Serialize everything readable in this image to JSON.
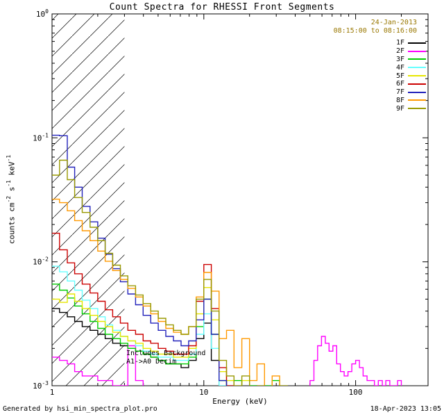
{
  "title": "Count Spectra for RHESSI Front Segments",
  "header": {
    "date": "24-Jan-2013",
    "time_range": "08:15:00 to 08:16:00",
    "text_color": "#997700"
  },
  "plot_annotations": {
    "line1": "Includes Background",
    "line2": "A1->A0 Decim"
  },
  "footer": {
    "left": "Generated by hsi_min_spectra_plot.pro",
    "right": "18-Apr-2023 13:05"
  },
  "chart_data": {
    "type": "line",
    "step": true,
    "title": "Count Spectra for RHESSI Front Segments",
    "xlabel": "Energy (keV)",
    "ylabel": "counts cm^-2 s^-1 keV^-1",
    "ylabel_parts": [
      [
        "counts cm",
        "-2"
      ],
      [
        " s",
        "-1"
      ],
      [
        " keV",
        "-1"
      ]
    ],
    "xscale": "log",
    "yscale": "log",
    "xlim": [
      1,
      300
    ],
    "ylim": [
      0.001,
      1
    ],
    "xticks": [
      1,
      10,
      100
    ],
    "ytick_exponents": [
      0,
      -1,
      -2,
      -3
    ],
    "grid": false,
    "legend_position": "top-right",
    "hatch_region": {
      "xmin": 1,
      "xmax": 3
    },
    "series": [
      {
        "name": "1F",
        "color": "#000000",
        "points": [
          [
            1.0,
            0.0042
          ],
          [
            1.12,
            0.0039
          ],
          [
            1.26,
            0.0036
          ],
          [
            1.41,
            0.0033
          ],
          [
            1.58,
            0.003
          ],
          [
            1.78,
            0.0028
          ],
          [
            2.0,
            0.0026
          ],
          [
            2.24,
            0.0024
          ],
          [
            2.51,
            0.0022
          ],
          [
            2.82,
            0.0021
          ],
          [
            3.16,
            0.002
          ],
          [
            3.55,
            0.0019
          ],
          [
            3.98,
            0.0018
          ],
          [
            4.47,
            0.0017
          ],
          [
            5.01,
            0.0016
          ],
          [
            5.62,
            0.0015
          ],
          [
            6.31,
            0.0015
          ],
          [
            7.08,
            0.0014
          ],
          [
            7.94,
            0.0016
          ],
          [
            8.91,
            0.0024
          ],
          [
            10.0,
            0.0032
          ],
          [
            11.2,
            0.0016
          ],
          [
            12.6,
            0.0008
          ],
          [
            14.1,
            0.0006
          ]
        ]
      },
      {
        "name": "2F",
        "color": "#ff00ff",
        "points": [
          [
            1.0,
            0.0017
          ],
          [
            1.12,
            0.0016
          ],
          [
            1.26,
            0.0015
          ],
          [
            1.41,
            0.0013
          ],
          [
            1.58,
            0.0012
          ],
          [
            1.78,
            0.0012
          ],
          [
            2.0,
            0.0011
          ],
          [
            2.24,
            0.0011
          ],
          [
            2.51,
            0.001
          ],
          [
            2.82,
            0.001
          ],
          [
            3.16,
            0.0021
          ],
          [
            3.55,
            0.0011
          ],
          [
            3.98,
            0.0008
          ],
          [
            4.47,
            0.0006
          ],
          [
            5.01,
            0.0005
          ],
          [
            44.7,
            0.0007
          ],
          [
            50.1,
            0.0011
          ],
          [
            53.1,
            0.0016
          ],
          [
            56.2,
            0.0021
          ],
          [
            59.6,
            0.0025
          ],
          [
            63.1,
            0.0022
          ],
          [
            66.8,
            0.0019
          ],
          [
            70.8,
            0.0021
          ],
          [
            75.0,
            0.0015
          ],
          [
            79.4,
            0.0013
          ],
          [
            84.1,
            0.0012
          ],
          [
            89.1,
            0.0013
          ],
          [
            94.4,
            0.0015
          ],
          [
            100,
            0.0016
          ],
          [
            106,
            0.0014
          ],
          [
            112,
            0.0012
          ],
          [
            119,
            0.0011
          ],
          [
            126,
            0.0011
          ],
          [
            133,
            0.001
          ],
          [
            141,
            0.0011
          ],
          [
            150,
            0.001
          ],
          [
            158,
            0.0011
          ],
          [
            168,
            0.001
          ],
          [
            178,
            0.001
          ],
          [
            189,
            0.0011
          ],
          [
            200,
            0.0009
          ],
          [
            212,
            0.0008
          ]
        ]
      },
      {
        "name": "3F",
        "color": "#00cc00",
        "points": [
          [
            1.0,
            0.0066
          ],
          [
            1.12,
            0.0059
          ],
          [
            1.26,
            0.0051
          ],
          [
            1.41,
            0.0044
          ],
          [
            1.58,
            0.0038
          ],
          [
            1.78,
            0.0033
          ],
          [
            2.0,
            0.0029
          ],
          [
            2.24,
            0.0026
          ],
          [
            2.51,
            0.0024
          ],
          [
            2.82,
            0.0022
          ],
          [
            3.16,
            0.002
          ],
          [
            3.55,
            0.0019
          ],
          [
            3.98,
            0.0018
          ],
          [
            4.47,
            0.0017
          ],
          [
            5.01,
            0.0016
          ],
          [
            5.62,
            0.0015
          ],
          [
            6.31,
            0.0015
          ],
          [
            7.08,
            0.0015
          ],
          [
            7.94,
            0.0017
          ],
          [
            8.91,
            0.003
          ],
          [
            10.0,
            0.005
          ],
          [
            11.2,
            0.0026
          ],
          [
            12.6,
            0.0011
          ],
          [
            14.1,
            0.0009
          ],
          [
            15.8,
            0.0011
          ],
          [
            17.8,
            0.0008
          ],
          [
            20.0,
            0.001
          ],
          [
            22.4,
            0.0008
          ],
          [
            25.1,
            0.001
          ],
          [
            28.2,
            0.0011
          ],
          [
            31.6,
            0.0008
          ],
          [
            35.5,
            0.0006
          ]
        ]
      },
      {
        "name": "4F",
        "color": "#66ffff",
        "points": [
          [
            1.0,
            0.0092
          ],
          [
            1.12,
            0.0083
          ],
          [
            1.26,
            0.007
          ],
          [
            1.41,
            0.0059
          ],
          [
            1.58,
            0.0049
          ],
          [
            1.78,
            0.0042
          ],
          [
            2.0,
            0.0036
          ],
          [
            2.24,
            0.0031
          ],
          [
            2.51,
            0.0028
          ],
          [
            2.82,
            0.0025
          ],
          [
            3.16,
            0.0023
          ],
          [
            3.55,
            0.0021
          ],
          [
            3.98,
            0.0019
          ],
          [
            4.47,
            0.0018
          ],
          [
            5.01,
            0.0017
          ],
          [
            5.62,
            0.0017
          ],
          [
            6.31,
            0.0016
          ],
          [
            7.08,
            0.0016
          ],
          [
            7.94,
            0.0018
          ],
          [
            8.91,
            0.0026
          ],
          [
            10.0,
            0.0038
          ],
          [
            11.2,
            0.002
          ],
          [
            12.6,
            0.001
          ],
          [
            14.1,
            0.0008
          ],
          [
            15.8,
            0.0009
          ]
        ]
      },
      {
        "name": "5F",
        "color": "#e6e600",
        "points": [
          [
            1.0,
            0.005
          ],
          [
            1.12,
            0.0047
          ],
          [
            1.26,
            0.0055
          ],
          [
            1.41,
            0.0048
          ],
          [
            1.58,
            0.0042
          ],
          [
            1.78,
            0.0037
          ],
          [
            2.0,
            0.0033
          ],
          [
            2.24,
            0.003
          ],
          [
            2.51,
            0.0027
          ],
          [
            2.82,
            0.0025
          ],
          [
            3.16,
            0.0023
          ],
          [
            3.55,
            0.0022
          ],
          [
            3.98,
            0.002
          ],
          [
            4.47,
            0.0019
          ],
          [
            5.01,
            0.0018
          ],
          [
            5.62,
            0.0018
          ],
          [
            6.31,
            0.0017
          ],
          [
            7.08,
            0.0017
          ],
          [
            7.94,
            0.002
          ],
          [
            8.91,
            0.0038
          ],
          [
            10.0,
            0.0062
          ],
          [
            11.2,
            0.0034
          ],
          [
            12.6,
            0.0013
          ],
          [
            14.1,
            0.0011
          ],
          [
            15.8,
            0.0009
          ],
          [
            17.8,
            0.0011
          ],
          [
            20.0,
            0.0008
          ],
          [
            22.4,
            0.0009
          ],
          [
            25.1,
            0.0007
          ]
        ]
      },
      {
        "name": "6F",
        "color": "#cc0000",
        "points": [
          [
            1.0,
            0.017
          ],
          [
            1.12,
            0.0125
          ],
          [
            1.26,
            0.0098
          ],
          [
            1.41,
            0.008
          ],
          [
            1.58,
            0.0066
          ],
          [
            1.78,
            0.0056
          ],
          [
            2.0,
            0.0048
          ],
          [
            2.24,
            0.0041
          ],
          [
            2.51,
            0.0036
          ],
          [
            2.82,
            0.0032
          ],
          [
            3.16,
            0.0028
          ],
          [
            3.55,
            0.0026
          ],
          [
            3.98,
            0.0023
          ],
          [
            4.47,
            0.0022
          ],
          [
            5.01,
            0.002
          ],
          [
            5.62,
            0.0019
          ],
          [
            6.31,
            0.0018
          ],
          [
            7.08,
            0.0018
          ],
          [
            7.94,
            0.0021
          ],
          [
            8.91,
            0.0048
          ],
          [
            10.0,
            0.0095
          ],
          [
            11.2,
            0.0042
          ],
          [
            12.6,
            0.0014
          ],
          [
            14.1,
            0.001
          ],
          [
            15.8,
            0.0008
          ]
        ]
      },
      {
        "name": "7F",
        "color": "#2222bb",
        "points": [
          [
            1.0,
            0.105
          ],
          [
            1.12,
            0.104
          ],
          [
            1.26,
            0.058
          ],
          [
            1.41,
            0.04
          ],
          [
            1.58,
            0.028
          ],
          [
            1.78,
            0.021
          ],
          [
            2.0,
            0.0155
          ],
          [
            2.24,
            0.0115
          ],
          [
            2.51,
            0.0088
          ],
          [
            2.82,
            0.0069
          ],
          [
            3.16,
            0.0055
          ],
          [
            3.55,
            0.0045
          ],
          [
            3.98,
            0.0037
          ],
          [
            4.47,
            0.0032
          ],
          [
            5.01,
            0.0028
          ],
          [
            5.62,
            0.0025
          ],
          [
            6.31,
            0.0023
          ],
          [
            7.08,
            0.0021
          ],
          [
            7.94,
            0.0023
          ],
          [
            8.91,
            0.0034
          ],
          [
            10.0,
            0.005
          ],
          [
            11.2,
            0.0026
          ],
          [
            12.6,
            0.0011
          ],
          [
            14.1,
            0.0008
          ]
        ]
      },
      {
        "name": "8F",
        "color": "#ff9900",
        "points": [
          [
            1.0,
            0.032
          ],
          [
            1.12,
            0.03
          ],
          [
            1.26,
            0.0258
          ],
          [
            1.41,
            0.0215
          ],
          [
            1.58,
            0.0178
          ],
          [
            1.78,
            0.0148
          ],
          [
            2.0,
            0.0122
          ],
          [
            2.24,
            0.0101
          ],
          [
            2.51,
            0.0085
          ],
          [
            2.82,
            0.0072
          ],
          [
            3.16,
            0.0061
          ],
          [
            3.55,
            0.0052
          ],
          [
            3.98,
            0.0044
          ],
          [
            4.47,
            0.0038
          ],
          [
            5.01,
            0.0033
          ],
          [
            5.62,
            0.0029
          ],
          [
            6.31,
            0.0027
          ],
          [
            7.08,
            0.0026
          ],
          [
            7.94,
            0.003
          ],
          [
            8.91,
            0.0052
          ],
          [
            10.0,
            0.0082
          ],
          [
            11.2,
            0.0058
          ],
          [
            12.6,
            0.0024
          ],
          [
            14.1,
            0.0028
          ],
          [
            15.8,
            0.0014
          ],
          [
            17.8,
            0.0024
          ],
          [
            20.0,
            0.0011
          ],
          [
            22.4,
            0.0015
          ],
          [
            25.1,
            0.0009
          ],
          [
            28.2,
            0.0012
          ],
          [
            31.6,
            0.0008
          ]
        ]
      },
      {
        "name": "9F",
        "color": "#999900",
        "points": [
          [
            1.0,
            0.05
          ],
          [
            1.12,
            0.066
          ],
          [
            1.26,
            0.046
          ],
          [
            1.41,
            0.033
          ],
          [
            1.58,
            0.025
          ],
          [
            1.78,
            0.019
          ],
          [
            2.0,
            0.0148
          ],
          [
            2.24,
            0.0117
          ],
          [
            2.51,
            0.0094
          ],
          [
            2.82,
            0.0077
          ],
          [
            3.16,
            0.0064
          ],
          [
            3.55,
            0.0054
          ],
          [
            3.98,
            0.0046
          ],
          [
            4.47,
            0.004
          ],
          [
            5.01,
            0.0035
          ],
          [
            5.62,
            0.0031
          ],
          [
            6.31,
            0.0028
          ],
          [
            7.08,
            0.0026
          ],
          [
            7.94,
            0.003
          ],
          [
            8.91,
            0.005
          ],
          [
            10.0,
            0.0072
          ],
          [
            11.2,
            0.004
          ],
          [
            12.6,
            0.0016
          ],
          [
            14.1,
            0.0012
          ],
          [
            15.8,
            0.001
          ],
          [
            17.8,
            0.0012
          ],
          [
            20.0,
            0.0009
          ],
          [
            22.4,
            0.001
          ],
          [
            25.1,
            0.0008
          ],
          [
            28.2,
            0.0009
          ],
          [
            31.6,
            0.001
          ],
          [
            35.5,
            0.0008
          ],
          [
            39.8,
            0.0007
          ]
        ]
      }
    ]
  }
}
